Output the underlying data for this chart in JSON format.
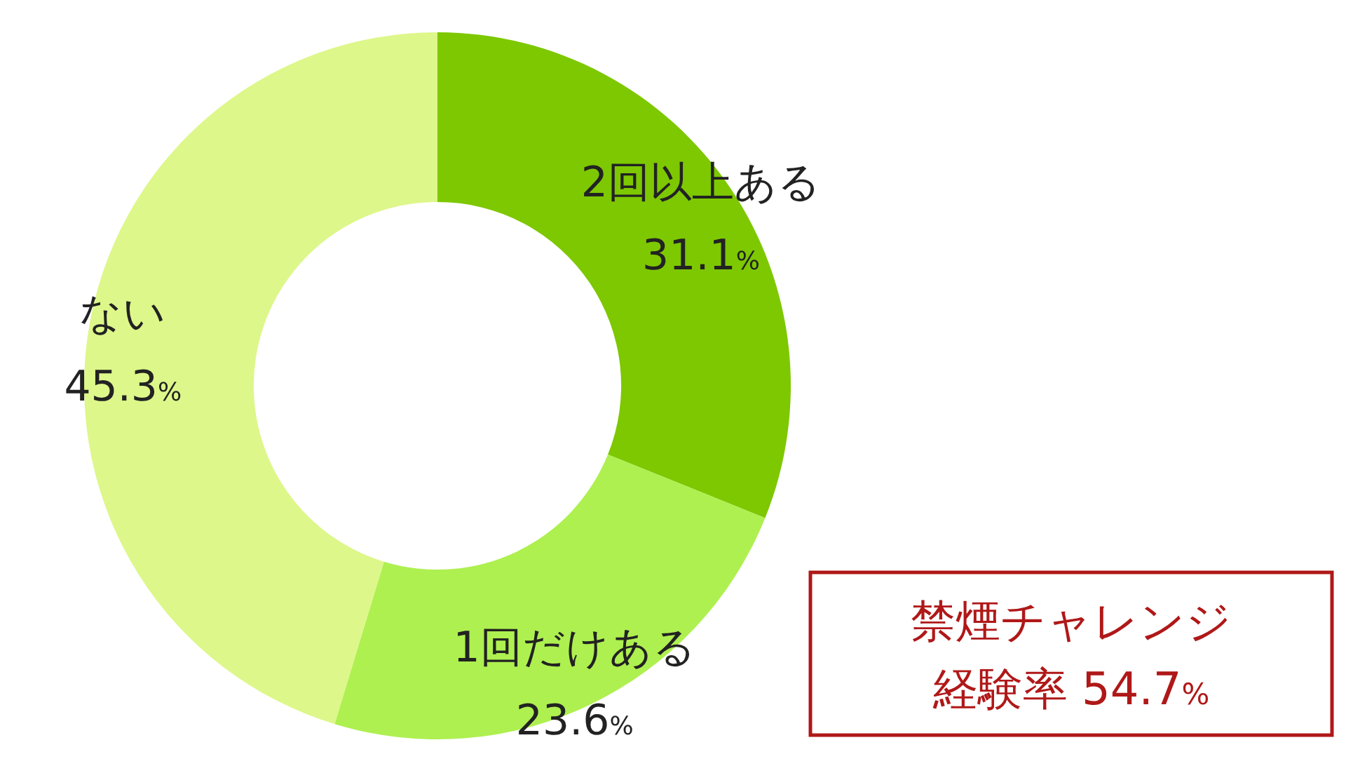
{
  "chart_data": {
    "type": "donut",
    "categories": [
      "2回以上ある",
      "1回だけある",
      "ない"
    ],
    "values": [
      31.1,
      23.6,
      45.3
    ],
    "value_labels": [
      "31.1%",
      "23.6%",
      "45.3%"
    ],
    "colors": [
      "#7dc800",
      "#aef050",
      "#ddf78a"
    ],
    "annotations": [
      "禁煙チャレンジ",
      "経験率 54.7%"
    ]
  }
}
